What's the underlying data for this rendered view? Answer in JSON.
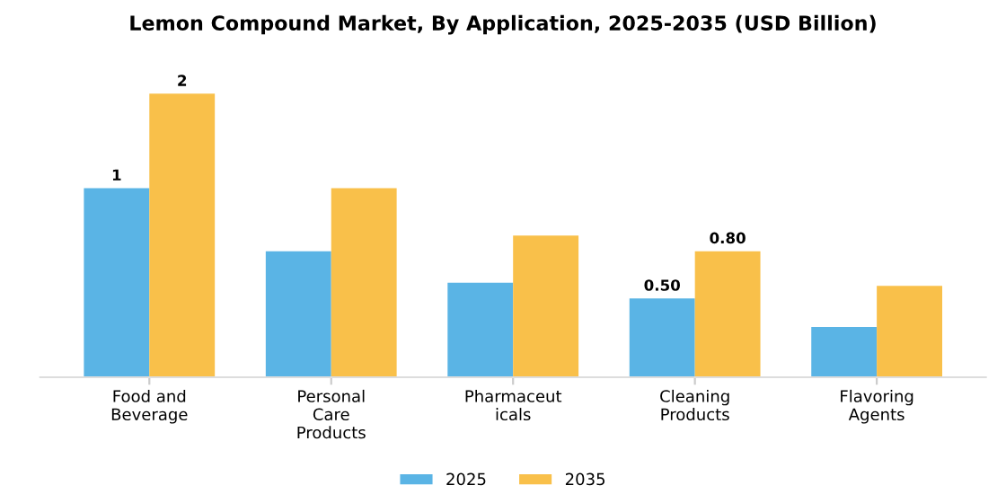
{
  "chart_data": {
    "type": "bar",
    "title": "Lemon Compound Market, By Application, 2025-2035 (USD Billion)",
    "categories": [
      "Food and\nBeverage",
      "Personal\nCare\nProducts",
      "Pharmaceut\nicals",
      "Cleaning\nProducts",
      "Flavoring\nAgents"
    ],
    "series": [
      {
        "name": "2025",
        "color": "#5ab4e5",
        "values": [
          1.2,
          0.8,
          0.6,
          0.5,
          0.32
        ],
        "value_labels": [
          "1",
          null,
          null,
          "0.50",
          null
        ]
      },
      {
        "name": "2035",
        "color": "#f9c04a",
        "values": [
          1.8,
          1.2,
          0.9,
          0.8,
          0.58
        ],
        "value_labels": [
          "2",
          null,
          null,
          "0.80",
          null
        ]
      }
    ],
    "legend": "bottom",
    "grid": false
  }
}
